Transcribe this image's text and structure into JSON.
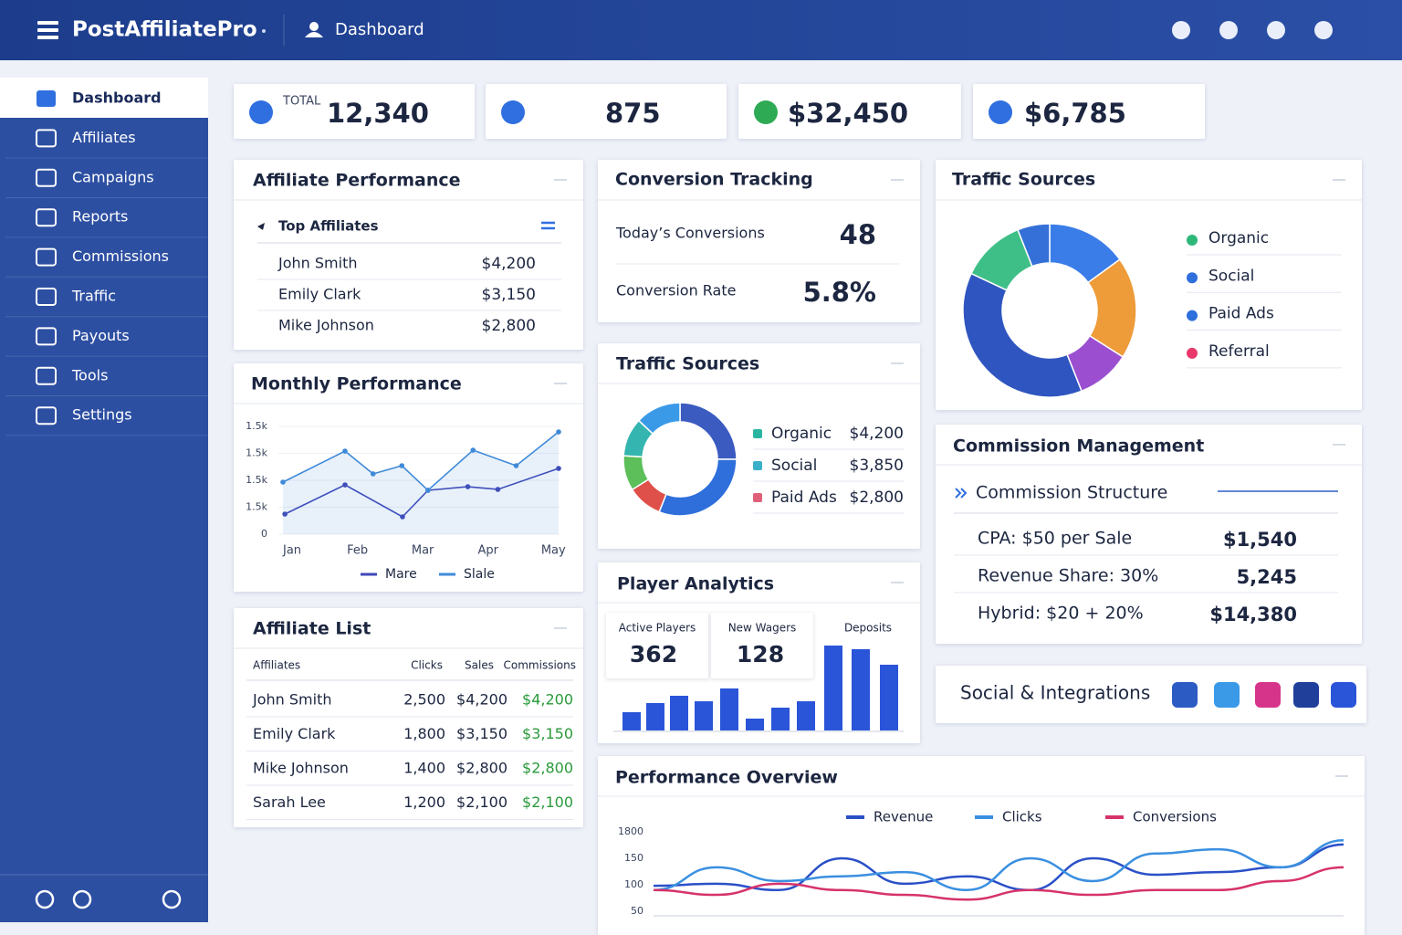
{
  "header": {
    "brand": "PostAffiliatePro",
    "page": "Dashboard"
  },
  "sidebar": {
    "items": [
      "Dashboard",
      "Affiliates",
      "Campaigns",
      "Reports",
      "Commissions",
      "Traffic",
      "Payouts",
      "Tools",
      "Settings"
    ]
  },
  "stats": [
    {
      "label": "TOTAL",
      "value": "12,340"
    },
    {
      "value": "875"
    },
    {
      "value": "$32,450"
    },
    {
      "value": "$6,785"
    }
  ],
  "affiliate_performance": {
    "title": "Affiliate Performance",
    "subtitle": "Top Affiliates",
    "rows": [
      [
        "John Smith",
        "$4,200"
      ],
      [
        "Emily Clark",
        "$3,150"
      ],
      [
        "Mike Johnson",
        "$2,800"
      ]
    ]
  },
  "monthly_performance": {
    "title": "Monthly Performance",
    "type": "line",
    "y_labels": [
      "1.5k",
      "1.5k",
      "1.5k",
      "1.5k",
      "0"
    ],
    "xlim": [
      -0.14,
      4.08
    ],
    "ylim": [
      0,
      2000
    ],
    "xticks": [
      {
        "value": 0,
        "label": "Jan"
      },
      {
        "value": 1,
        "label": "Feb"
      },
      {
        "value": 2,
        "label": "Mar"
      },
      {
        "value": 3,
        "label": "Apr"
      },
      {
        "value": 4,
        "label": "May"
      }
    ],
    "series": [
      {
        "name": "Mare",
        "color": "#3f47b8",
        "x": [
          -0.11,
          0.81,
          1.69,
          2.08,
          2.69,
          3.15,
          4.08
        ],
        "values": [
          373,
          915,
          322,
          814,
          881,
          831,
          1220
        ]
      },
      {
        "name": "Slale",
        "color": "#3f8ad8",
        "x": [
          -0.14,
          0.81,
          1.24,
          1.68,
          2.08,
          2.77,
          3.43,
          4.08
        ],
        "values": [
          966,
          1542,
          1119,
          1271,
          814,
          1559,
          1271,
          1898
        ]
      }
    ]
  },
  "affiliate_list": {
    "title": "Affiliate List",
    "columns": [
      "Affiliates",
      "Clicks",
      "Sales",
      "Commissions"
    ],
    "rows": [
      [
        "John Smith",
        "2,500",
        "$4,200",
        "$4,200"
      ],
      [
        "Emily Clark",
        "1,800",
        "$3,150",
        "$3,150"
      ],
      [
        "Mike Johnson",
        "1,400",
        "$2,800",
        "$2,800"
      ],
      [
        "Sarah Lee",
        "1,200",
        "$2,100",
        "$2,100"
      ]
    ]
  },
  "conversion_tracking": {
    "title": "Conversion Tracking",
    "rows": [
      [
        "Today’s Conversions",
        "48"
      ],
      [
        "Conversion Rate",
        "5.8%"
      ]
    ]
  },
  "traffic_sources_detail": {
    "title": "Traffic Sources",
    "type": "pie",
    "values": [
      25,
      31,
      10,
      10,
      11,
      13
    ],
    "colors": [
      "#3b5bc0",
      "#2f6fdc",
      "#e0504a",
      "#5cbf5a",
      "#35b5b0",
      "#3a9ae8"
    ],
    "rows": [
      {
        "name": "Organic",
        "color": "#2bb5a0",
        "amount": "$4,200"
      },
      {
        "name": "Social",
        "color": "#3ab0c8",
        "amount": "$3,850"
      },
      {
        "name": "Paid Ads",
        "color": "#e0607a",
        "amount": "$2,800"
      }
    ]
  },
  "player_analytics": {
    "title": "Player Analytics",
    "type": "bar",
    "stats": [
      {
        "label": "Active Players",
        "value": "362"
      },
      {
        "label": "New Wagers",
        "value": "128"
      },
      {
        "label": "Deposits"
      }
    ],
    "values": [
      20,
      30,
      38,
      32,
      46,
      13,
      25,
      32,
      93,
      89,
      72
    ],
    "ylim": [
      0,
      100
    ],
    "color": "#2a55d8"
  },
  "performance_overview": {
    "title": "Performance Overview",
    "type": "line",
    "y_labels": [
      "1800",
      "150",
      "100",
      "50"
    ],
    "ylim": [
      40,
      200
    ],
    "series": [
      {
        "name": "Revenue",
        "color": "#2a50c8",
        "values": [
          98,
          102,
          90,
          150,
          102,
          116,
          90,
          150,
          119,
          124,
          133,
          176
        ]
      },
      {
        "name": "Clicks",
        "color": "#3a8fe0",
        "values": [
          90,
          133,
          107,
          116,
          124,
          90,
          150,
          107,
          159,
          167,
          133,
          184
        ]
      },
      {
        "name": "Conversions",
        "color": "#d6336c",
        "values": [
          90,
          81,
          102,
          90,
          81,
          72,
          90,
          81,
          90,
          90,
          107,
          133
        ]
      }
    ]
  },
  "traffic_sources": {
    "title": "Traffic Sources",
    "type": "pie",
    "values": [
      15,
      19,
      10,
      38,
      12,
      6
    ],
    "colors": [
      "#3a7de8",
      "#ee9b3a",
      "#9b4fd0",
      "#2f55c0",
      "#3fbf88",
      "#3570d8"
    ],
    "legend": [
      {
        "name": "Organic",
        "color": "#2db87a"
      },
      {
        "name": "Social",
        "color": "#2f6fdc"
      },
      {
        "name": "Paid Ads",
        "color": "#2f6fdc"
      },
      {
        "name": "Referral",
        "color": "#e8396a"
      }
    ]
  },
  "commission_management": {
    "title": "Commission Management",
    "subtitle": "Commission Structure",
    "rows": [
      [
        "CPA: $50 per Sale",
        "$1,540"
      ],
      [
        "Revenue Share: 30%",
        "5,245"
      ],
      [
        "Hybrid: $20 + 20%",
        "$14,380"
      ]
    ]
  },
  "social": {
    "title": "Social & Integrations"
  }
}
